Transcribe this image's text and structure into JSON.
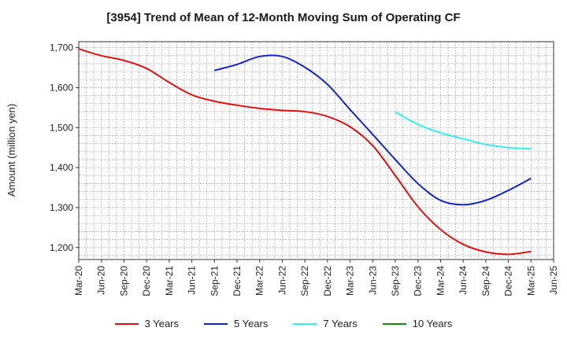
{
  "chart_data": {
    "type": "line",
    "title": "[3954]  Trend of Mean of 12-Month Moving Sum of Operating CF",
    "xlabel": "",
    "ylabel": "Amount (million yen)",
    "ylim": [
      1170,
      1715
    ],
    "yticks": [
      1200,
      1300,
      1400,
      1500,
      1600,
      1700
    ],
    "ytick_labels": [
      "1,200",
      "1,300",
      "1,400",
      "1,500",
      "1,600",
      "1,700"
    ],
    "categories": [
      "Mar-20",
      "Jun-20",
      "Sep-20",
      "Dec-20",
      "Mar-21",
      "Jun-21",
      "Sep-21",
      "Dec-21",
      "Mar-22",
      "Jun-22",
      "Sep-22",
      "Dec-22",
      "Mar-23",
      "Jun-23",
      "Sep-23",
      "Dec-23",
      "Mar-24",
      "Jun-24",
      "Sep-24",
      "Dec-24",
      "Mar-25",
      "Jun-25"
    ],
    "grid": true,
    "legend_position": "bottom",
    "series": [
      {
        "name": "3 Years",
        "color": "#dd1111",
        "values": [
          1697,
          1680,
          1668,
          1648,
          1613,
          1582,
          1566,
          1556,
          1548,
          1543,
          1540,
          1528,
          1502,
          1455,
          1380,
          1302,
          1245,
          1208,
          1189,
          1183,
          1190,
          null
        ]
      },
      {
        "name": "5 Years",
        "color": "#1122cc",
        "values": [
          null,
          null,
          null,
          null,
          null,
          null,
          1643,
          1658,
          1678,
          1678,
          1651,
          1608,
          1545,
          1483,
          1420,
          1360,
          1318,
          1307,
          1318,
          1343,
          1373,
          null
        ]
      },
      {
        "name": "7 Years",
        "color": "#33eeee",
        "values": [
          null,
          null,
          null,
          null,
          null,
          null,
          null,
          null,
          null,
          null,
          null,
          null,
          null,
          null,
          1539,
          1508,
          1487,
          1472,
          1458,
          1450,
          1447,
          null
        ]
      },
      {
        "name": "10 Years",
        "color": "#118811",
        "values": [
          null,
          null,
          null,
          null,
          null,
          null,
          null,
          null,
          null,
          null,
          null,
          null,
          null,
          null,
          null,
          null,
          null,
          null,
          null,
          null,
          null,
          null
        ]
      }
    ]
  }
}
